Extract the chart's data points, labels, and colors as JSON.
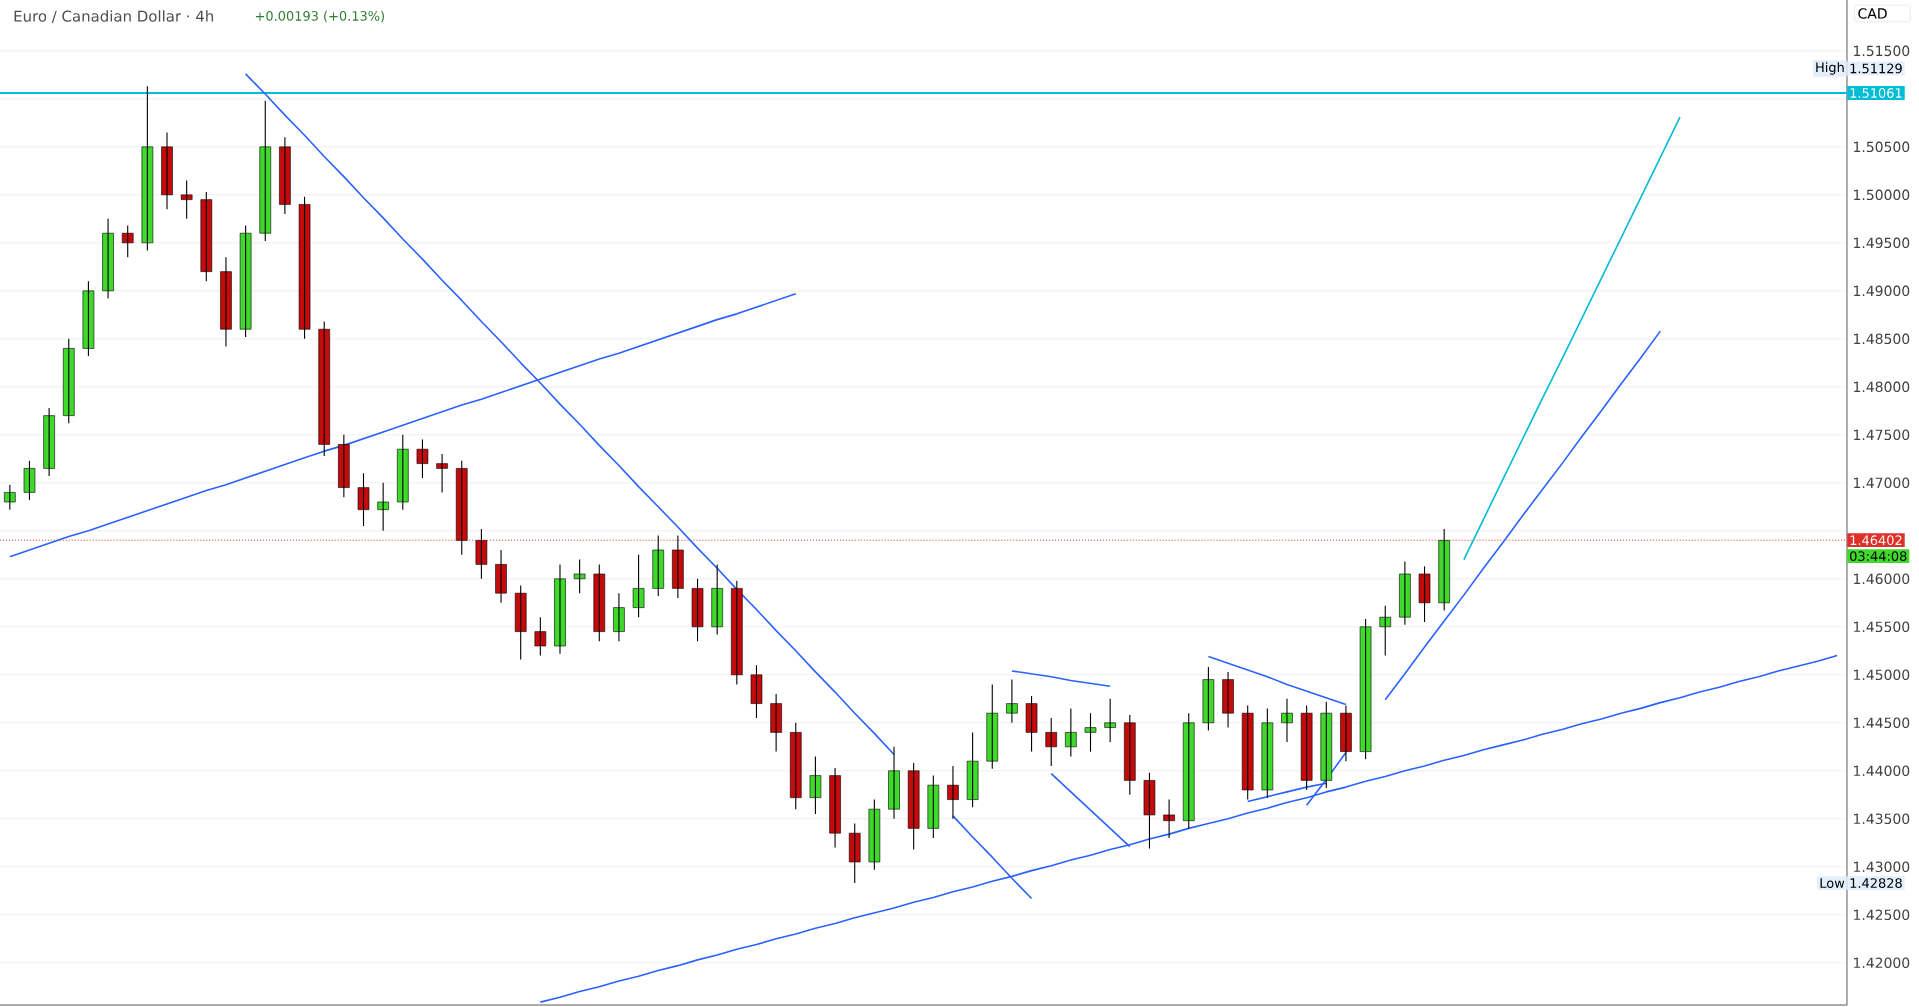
{
  "chart_data": {
    "type": "candlestick",
    "title": "Euro / Canadian Dollar · 4h",
    "subtitle": "+0.00193 (+0.13%)",
    "ylabel": "CAD",
    "categories": [
      null,
      null,
      null,
      null,
      null,
      null,
      null,
      null,
      null,
      null,
      null,
      null,
      null,
      null,
      null,
      null,
      null,
      null,
      null,
      null,
      null,
      null,
      null,
      null,
      null,
      null,
      null,
      null,
      null,
      null,
      null,
      null,
      null,
      null,
      null,
      null,
      null,
      null,
      null,
      null,
      null,
      null,
      null,
      null,
      null,
      null,
      null,
      null,
      null,
      null,
      null,
      null,
      null,
      null,
      null,
      null,
      null,
      null,
      null,
      null,
      null,
      null,
      null,
      null,
      null,
      null,
      null,
      null,
      null,
      null,
      null,
      null,
      null,
      null,
      null,
      null,
      null,
      null,
      null,
      null,
      null,
      null,
      null,
      null,
      null,
      null,
      null,
      null,
      null,
      null,
      null,
      null,
      null,
      null
    ],
    "ohlc": [
      [
        1.468,
        1.4698,
        1.4672,
        1.469
      ],
      [
        1.469,
        1.4723,
        1.4682,
        1.4715
      ],
      [
        1.4715,
        1.4778,
        1.4707,
        1.477
      ],
      [
        1.477,
        1.485,
        1.4762,
        1.484
      ],
      [
        1.484,
        1.491,
        1.4832,
        1.49
      ],
      [
        1.49,
        1.4975,
        1.4892,
        1.496
      ],
      [
        1.496,
        1.4968,
        1.4935,
        1.495
      ],
      [
        1.495,
        1.5113,
        1.4942,
        1.505
      ],
      [
        1.505,
        1.5065,
        1.4985,
        1.5
      ],
      [
        1.5,
        1.5015,
        1.4975,
        1.4995
      ],
      [
        1.4995,
        1.5003,
        1.491,
        1.492
      ],
      [
        1.492,
        1.4935,
        1.4842,
        1.486
      ],
      [
        1.486,
        1.4968,
        1.4852,
        1.496
      ],
      [
        1.496,
        1.5098,
        1.4952,
        1.505
      ],
      [
        1.505,
        1.506,
        1.498,
        1.499
      ],
      [
        1.499,
        1.4998,
        1.485,
        1.486
      ],
      [
        1.486,
        1.4868,
        1.4728,
        1.474
      ],
      [
        1.474,
        1.475,
        1.4685,
        1.4695
      ],
      [
        1.4695,
        1.471,
        1.4655,
        1.4672
      ],
      [
        1.4672,
        1.47,
        1.465,
        1.468
      ],
      [
        1.468,
        1.475,
        1.4672,
        1.4735
      ],
      [
        1.4735,
        1.4745,
        1.4705,
        1.472
      ],
      [
        1.472,
        1.473,
        1.469,
        1.4715
      ],
      [
        1.4715,
        1.4723,
        1.4625,
        1.464
      ],
      [
        1.464,
        1.4652,
        1.46,
        1.4615
      ],
      [
        1.4615,
        1.463,
        1.4575,
        1.4585
      ],
      [
        1.4585,
        1.4593,
        1.4516,
        1.4545
      ],
      [
        1.4545,
        1.456,
        1.452,
        1.453
      ],
      [
        1.453,
        1.4615,
        1.4522,
        1.46
      ],
      [
        1.46,
        1.462,
        1.4585,
        1.4605
      ],
      [
        1.4605,
        1.4615,
        1.4535,
        1.4545
      ],
      [
        1.4545,
        1.4585,
        1.4535,
        1.457
      ],
      [
        1.457,
        1.4625,
        1.456,
        1.459
      ],
      [
        1.459,
        1.4645,
        1.4582,
        1.463
      ],
      [
        1.463,
        1.4645,
        1.458,
        1.459
      ],
      [
        1.459,
        1.46,
        1.4535,
        1.455
      ],
      [
        1.455,
        1.4615,
        1.4542,
        1.459
      ],
      [
        1.459,
        1.4598,
        1.449,
        1.45
      ],
      [
        1.45,
        1.451,
        1.4455,
        1.447
      ],
      [
        1.447,
        1.448,
        1.442,
        1.444
      ],
      [
        1.444,
        1.445,
        1.436,
        1.4372
      ],
      [
        1.4372,
        1.4415,
        1.4355,
        1.4395
      ],
      [
        1.4395,
        1.4403,
        1.432,
        1.4335
      ],
      [
        1.4335,
        1.4345,
        1.4283,
        1.4305
      ],
      [
        1.4305,
        1.437,
        1.4297,
        1.436
      ],
      [
        1.436,
        1.4425,
        1.435,
        1.44
      ],
      [
        1.44,
        1.4408,
        1.4318,
        1.434
      ],
      [
        1.434,
        1.4395,
        1.433,
        1.4385
      ],
      [
        1.4385,
        1.4405,
        1.435,
        1.437
      ],
      [
        1.437,
        1.444,
        1.4362,
        1.441
      ],
      [
        1.441,
        1.449,
        1.4402,
        1.446
      ],
      [
        1.446,
        1.4495,
        1.445,
        1.447
      ],
      [
        1.447,
        1.4478,
        1.442,
        1.444
      ],
      [
        1.444,
        1.4455,
        1.4405,
        1.4425
      ],
      [
        1.4425,
        1.4465,
        1.4415,
        1.444
      ],
      [
        1.444,
        1.446,
        1.442,
        1.4445
      ],
      [
        1.4445,
        1.4475,
        1.443,
        1.445
      ],
      [
        1.445,
        1.4458,
        1.4375,
        1.439
      ],
      [
        1.439,
        1.4398,
        1.4319,
        1.4354
      ],
      [
        1.4354,
        1.437,
        1.433,
        1.4348
      ],
      [
        1.4348,
        1.446,
        1.434,
        1.445
      ],
      [
        1.445,
        1.4508,
        1.4442,
        1.4495
      ],
      [
        1.4495,
        1.4503,
        1.4445,
        1.446
      ],
      [
        1.446,
        1.4468,
        1.437,
        1.438
      ],
      [
        1.438,
        1.4465,
        1.4372,
        1.445
      ],
      [
        1.445,
        1.4475,
        1.443,
        1.446
      ],
      [
        1.446,
        1.4468,
        1.438,
        1.439
      ],
      [
        1.439,
        1.4472,
        1.4382,
        1.446
      ],
      [
        1.446,
        1.4468,
        1.441,
        1.442
      ],
      [
        1.442,
        1.4558,
        1.4412,
        1.455
      ],
      [
        1.455,
        1.4572,
        1.452,
        1.456
      ],
      [
        1.456,
        1.4618,
        1.4552,
        1.4605
      ],
      [
        1.4605,
        1.4613,
        1.4555,
        1.4575
      ],
      [
        1.4575,
        1.4652,
        1.4567,
        1.464
      ],
      null,
      null,
      null,
      null,
      null,
      null,
      null,
      null,
      null,
      null,
      null,
      null,
      null,
      null,
      null,
      null,
      null,
      null,
      null,
      null
    ],
    "series": [
      {
        "type": "line",
        "color": "#2962ff",
        "values": [
          null,
          null,
          null,
          null,
          null,
          null,
          null,
          null,
          null,
          null,
          null,
          null,
          1.5126,
          1.5105,
          1.5083,
          1.5062,
          1.504,
          1.5019,
          1.4997,
          1.4976,
          1.4954,
          1.4933,
          1.4911,
          1.489,
          1.4868,
          1.4847,
          1.4825,
          1.4804,
          1.4782,
          1.4761,
          1.4739,
          1.4718,
          1.4696,
          1.4675,
          1.4654,
          1.4632,
          1.4611,
          1.4589,
          1.4568,
          1.4546,
          1.4525,
          1.4503,
          1.4482,
          1.446,
          1.4439,
          1.4417,
          null,
          null,
          1.4353,
          1.4331,
          1.431,
          1.4288,
          1.4267,
          null,
          null,
          null,
          null,
          null,
          null,
          null,
          null,
          null,
          null,
          null,
          null,
          null,
          null,
          null,
          null,
          null,
          null,
          null,
          null,
          null,
          null,
          null,
          null,
          null,
          null,
          null,
          null,
          null,
          null,
          null,
          null,
          null,
          null,
          null,
          null,
          null,
          null,
          null,
          null,
          null
        ]
      },
      {
        "type": "line",
        "color": "#2962ff",
        "values": [
          1.4623,
          1.463,
          1.4637,
          1.4644,
          1.465,
          1.4657,
          1.4664,
          1.4671,
          1.4678,
          1.4685,
          1.4692,
          1.4698,
          1.4705,
          1.4712,
          1.4719,
          1.4726,
          1.4733,
          1.4739,
          1.4746,
          1.4753,
          1.476,
          1.4767,
          1.4774,
          1.4781,
          1.4787,
          1.4794,
          1.4801,
          1.4808,
          1.4815,
          1.4822,
          1.4829,
          1.4835,
          1.4842,
          1.4849,
          1.4856,
          1.4863,
          1.487,
          1.4876,
          1.4883,
          1.489,
          1.4897,
          null,
          null,
          null,
          null,
          null,
          null,
          null,
          null,
          null,
          null,
          null,
          null,
          null,
          null,
          null,
          null,
          null,
          null,
          null,
          null,
          null,
          null,
          null,
          null,
          null,
          null,
          null,
          null,
          null,
          null,
          null,
          null,
          null,
          null,
          null,
          null,
          null,
          null,
          null,
          null,
          null,
          null,
          null,
          null,
          null,
          null,
          null,
          null,
          null,
          null,
          null,
          null,
          null
        ]
      },
      {
        "type": "line",
        "color": "#2962ff",
        "values": [
          null,
          null,
          null,
          null,
          null,
          null,
          null,
          null,
          null,
          null,
          null,
          null,
          null,
          null,
          null,
          null,
          null,
          null,
          null,
          null,
          null,
          null,
          null,
          null,
          null,
          null,
          null,
          1.4159,
          1.4164,
          1.417,
          1.4175,
          1.4181,
          1.4186,
          1.4192,
          1.4197,
          1.4203,
          1.4208,
          1.4214,
          1.4219,
          1.4225,
          1.423,
          1.4236,
          1.4241,
          1.4247,
          1.4252,
          1.4257,
          1.4263,
          1.4268,
          1.4274,
          1.4279,
          1.4285,
          1.429,
          1.4296,
          1.4301,
          1.4307,
          1.4312,
          1.4318,
          1.4323,
          1.4329,
          1.4334,
          1.434,
          1.4345,
          1.435,
          1.4356,
          1.4361,
          1.4367,
          1.4372,
          1.4378,
          1.4383,
          1.4389,
          1.4394,
          1.44,
          1.4405,
          1.4411,
          1.4416,
          1.4422,
          1.4427,
          1.4432,
          1.4438,
          1.4443,
          1.4449,
          1.4454,
          1.446,
          1.4465,
          1.4471,
          1.4476,
          1.4482,
          1.4487,
          1.4493,
          1.4498,
          1.4504,
          1.4509,
          1.4514,
          1.452
        ]
      },
      {
        "type": "line",
        "color": "#2962ff",
        "values": [
          null,
          null,
          null,
          null,
          null,
          null,
          null,
          null,
          null,
          null,
          null,
          null,
          null,
          null,
          null,
          null,
          null,
          null,
          null,
          null,
          null,
          null,
          null,
          null,
          null,
          null,
          null,
          null,
          null,
          null,
          null,
          null,
          null,
          null,
          null,
          null,
          null,
          null,
          null,
          null,
          null,
          null,
          null,
          null,
          null,
          null,
          null,
          null,
          null,
          null,
          null,
          1.4504,
          1.4501,
          1.4498,
          1.4494,
          1.4491,
          1.4488,
          null,
          null,
          null,
          null,
          null,
          null,
          null,
          null,
          null,
          null,
          null,
          null,
          null,
          null,
          null,
          null,
          null,
          null,
          null,
          null,
          null,
          null,
          null,
          null,
          null,
          null,
          null,
          null,
          null,
          null,
          null,
          null,
          null,
          null,
          null,
          null,
          null
        ]
      },
      {
        "type": "line",
        "color": "#2962ff",
        "values": [
          null,
          null,
          null,
          null,
          null,
          null,
          null,
          null,
          null,
          null,
          null,
          null,
          null,
          null,
          null,
          null,
          null,
          null,
          null,
          null,
          null,
          null,
          null,
          null,
          null,
          null,
          null,
          null,
          null,
          null,
          null,
          null,
          null,
          null,
          null,
          null,
          null,
          null,
          null,
          null,
          null,
          null,
          null,
          null,
          null,
          null,
          null,
          null,
          null,
          null,
          null,
          null,
          null,
          1.4397,
          1.4378,
          1.4359,
          1.434,
          1.4321,
          null,
          null,
          null,
          null,
          null,
          null,
          null,
          null,
          null,
          null,
          null,
          null,
          null,
          null,
          null,
          null,
          null,
          null,
          null,
          null,
          null,
          null,
          null,
          null,
          null,
          null,
          null,
          null,
          null,
          null,
          null,
          null,
          null,
          null,
          null,
          null
        ]
      },
      {
        "type": "line",
        "color": "#2962ff",
        "values": [
          null,
          null,
          null,
          null,
          null,
          null,
          null,
          null,
          null,
          null,
          null,
          null,
          null,
          null,
          null,
          null,
          null,
          null,
          null,
          null,
          null,
          null,
          null,
          null,
          null,
          null,
          null,
          null,
          null,
          null,
          null,
          null,
          null,
          null,
          null,
          null,
          null,
          null,
          null,
          null,
          null,
          null,
          null,
          null,
          null,
          null,
          null,
          null,
          null,
          null,
          null,
          null,
          null,
          null,
          null,
          null,
          null,
          null,
          null,
          null,
          null,
          1.4519,
          1.4512,
          1.4505,
          1.4498,
          1.449,
          1.4483,
          1.4476,
          1.4469,
          null,
          null,
          null,
          null,
          null,
          null,
          null,
          null,
          null,
          null,
          null,
          null,
          null,
          null,
          null,
          null,
          null,
          null,
          null,
          null,
          null,
          null,
          null,
          null,
          null
        ]
      },
      {
        "type": "line",
        "color": "#2962ff",
        "values": [
          null,
          null,
          null,
          null,
          null,
          null,
          null,
          null,
          null,
          null,
          null,
          null,
          null,
          null,
          null,
          null,
          null,
          null,
          null,
          null,
          null,
          null,
          null,
          null,
          null,
          null,
          null,
          null,
          null,
          null,
          null,
          null,
          null,
          null,
          null,
          null,
          null,
          null,
          null,
          null,
          null,
          null,
          null,
          null,
          null,
          null,
          null,
          null,
          null,
          null,
          null,
          null,
          null,
          null,
          null,
          null,
          null,
          null,
          null,
          null,
          null,
          null,
          null,
          1.4368,
          1.4373,
          1.4378,
          1.4383,
          1.4387,
          null,
          null,
          null,
          null,
          null,
          null,
          null,
          null,
          null,
          null,
          null,
          null,
          null,
          null,
          null,
          null,
          null,
          null,
          null,
          null,
          null,
          null,
          null,
          null,
          null,
          null
        ]
      },
      {
        "type": "line",
        "color": "#2962ff",
        "values": [
          null,
          null,
          null,
          null,
          null,
          null,
          null,
          null,
          null,
          null,
          null,
          null,
          null,
          null,
          null,
          null,
          null,
          null,
          null,
          null,
          null,
          null,
          null,
          null,
          null,
          null,
          null,
          null,
          null,
          null,
          null,
          null,
          null,
          null,
          null,
          null,
          null,
          null,
          null,
          null,
          null,
          null,
          null,
          null,
          null,
          null,
          null,
          null,
          null,
          null,
          null,
          null,
          null,
          null,
          null,
          null,
          null,
          null,
          null,
          null,
          null,
          null,
          null,
          null,
          null,
          null,
          1.4364,
          1.4391,
          1.4419,
          null,
          1.4474,
          1.4501,
          1.4529,
          1.4556,
          1.4583,
          1.4611,
          1.4638,
          1.4666,
          1.4693,
          1.472,
          1.4748,
          1.4775,
          1.4803,
          1.483,
          1.4858,
          null,
          null,
          null,
          null,
          null,
          null,
          null,
          null,
          null
        ]
      },
      {
        "type": "line",
        "color": "#00bcd4",
        "values": [
          null,
          null,
          null,
          null,
          null,
          null,
          null,
          null,
          null,
          null,
          null,
          null,
          null,
          null,
          null,
          null,
          null,
          null,
          null,
          null,
          null,
          null,
          null,
          null,
          null,
          null,
          null,
          null,
          null,
          null,
          null,
          null,
          null,
          null,
          null,
          null,
          null,
          null,
          null,
          null,
          null,
          null,
          null,
          null,
          null,
          null,
          null,
          null,
          null,
          null,
          null,
          null,
          null,
          null,
          null,
          null,
          null,
          null,
          null,
          null,
          null,
          null,
          null,
          null,
          null,
          null,
          null,
          null,
          null,
          null,
          null,
          null,
          null,
          null,
          1.462,
          1.4662,
          1.4704,
          1.4746,
          1.4788,
          1.4829,
          1.4871,
          1.4913,
          1.4955,
          1.4997,
          1.5039,
          1.5081,
          null,
          null,
          null,
          null,
          null,
          null,
          null,
          null
        ]
      }
    ],
    "ref_lines": [
      {
        "axis": "y",
        "value": 1.51061,
        "label": "1.51061",
        "color": "#00bcd4"
      },
      {
        "axis": "y",
        "value": 1.46402,
        "label": "1.46402",
        "color": "#e0302a",
        "line_style": "dotted"
      }
    ],
    "annotations": [
      "High",
      "1.51129",
      "Low",
      "1.42828",
      "03:44:08"
    ],
    "ylim": [
      1.4156,
      1.5203
    ],
    "yticks": [
      {
        "value": 1.42,
        "label": "1.42000"
      },
      {
        "value": 1.425,
        "label": "1.42500"
      },
      {
        "value": 1.43,
        "label": "1.43000"
      },
      {
        "value": 1.435,
        "label": "1.43500"
      },
      {
        "value": 1.44,
        "label": "1.44000"
      },
      {
        "value": 1.445,
        "label": "1.44500"
      },
      {
        "value": 1.45,
        "label": "1.45000"
      },
      {
        "value": 1.455,
        "label": "1.45500"
      },
      {
        "value": 1.46,
        "label": "1.46000"
      },
      {
        "value": 1.465,
        "label": null
      },
      {
        "value": 1.47,
        "label": "1.47000"
      },
      {
        "value": 1.475,
        "label": "1.47500"
      },
      {
        "value": 1.48,
        "label": "1.48000"
      },
      {
        "value": 1.485,
        "label": "1.48500"
      },
      {
        "value": 1.49,
        "label": "1.49000"
      },
      {
        "value": 1.495,
        "label": "1.49500"
      },
      {
        "value": 1.5,
        "label": "1.50000"
      },
      {
        "value": 1.505,
        "label": "1.50500"
      },
      {
        "value": 1.51,
        "label": null
      },
      {
        "value": 1.515,
        "label": "1.51500"
      }
    ],
    "grid": "y",
    "tick_labels": "y"
  }
}
